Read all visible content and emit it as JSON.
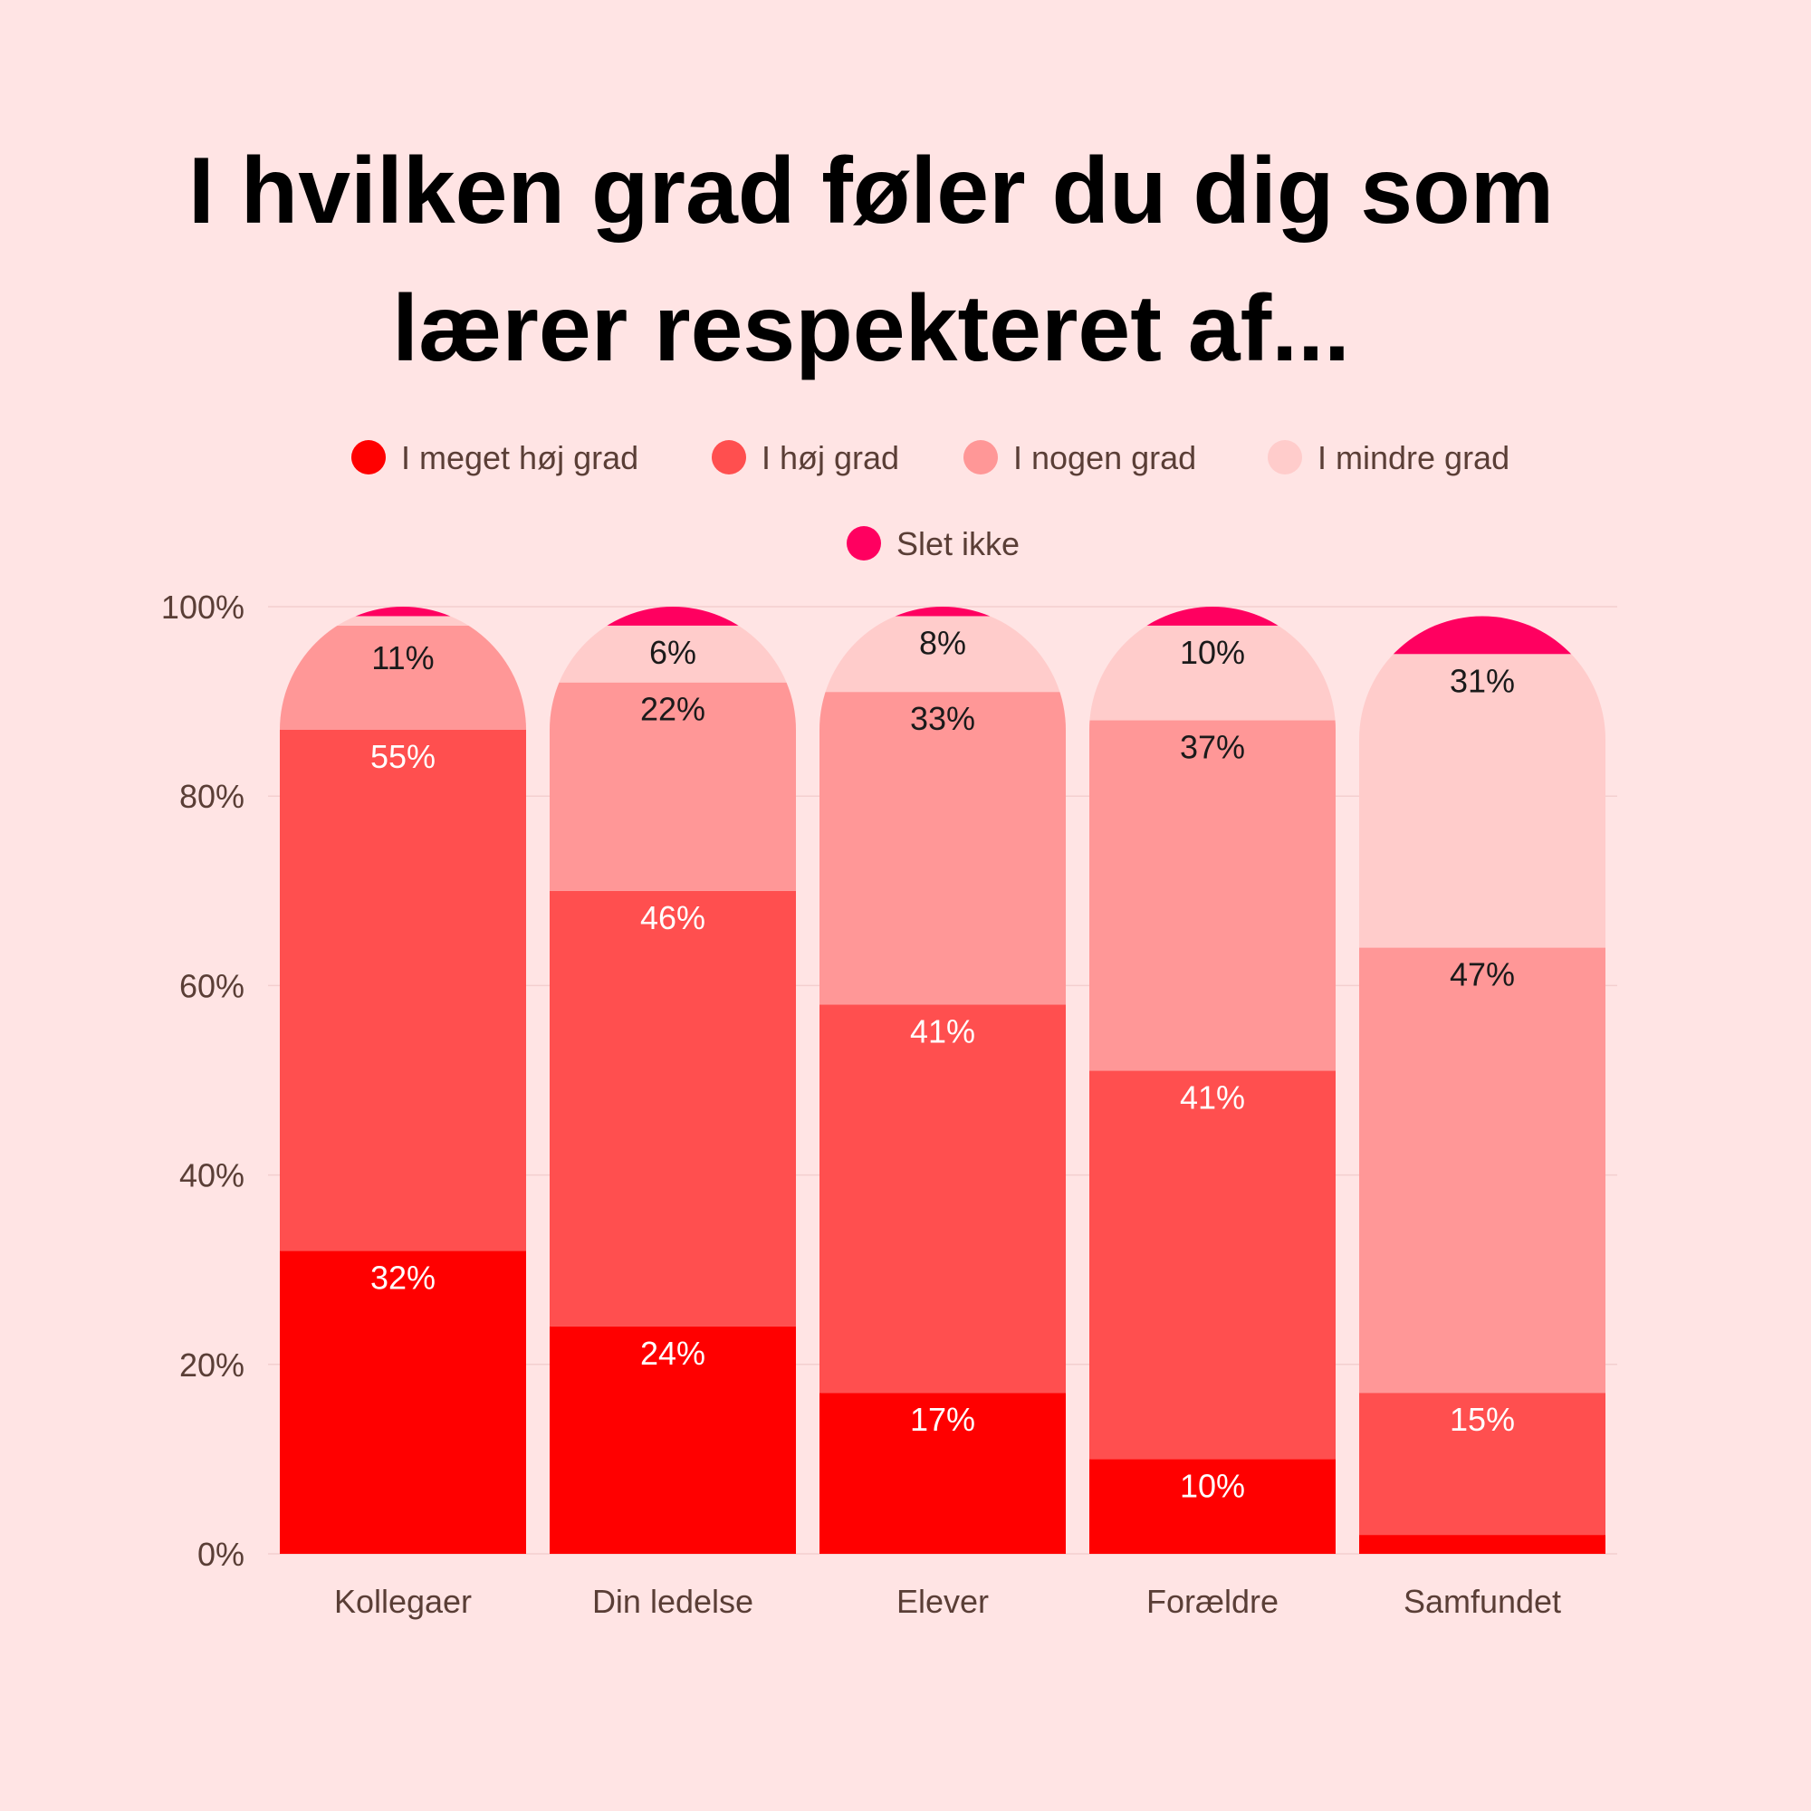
{
  "chart_data": {
    "type": "bar",
    "stacked": true,
    "title_lines": [
      "I hvilken grad føler du dig som",
      "lærer respekteret af..."
    ],
    "categories": [
      "Kollegaer",
      "Din ledelse",
      "Elever",
      "Forældre",
      "Samfundet"
    ],
    "series": [
      {
        "name": "I meget høj grad",
        "color": "#ff0000",
        "values": [
          32,
          24,
          17,
          10,
          2
        ],
        "labels": [
          "32%",
          "24%",
          "17%",
          "10%",
          ""
        ],
        "label_color": "#ffffff"
      },
      {
        "name": "I høj grad",
        "color": "#ff4f4f",
        "values": [
          55,
          46,
          41,
          41,
          15
        ],
        "labels": [
          "55%",
          "46%",
          "41%",
          "41%",
          "15%"
        ],
        "label_color": "#ffffff"
      },
      {
        "name": "I nogen grad",
        "color": "#ff9797",
        "values": [
          11,
          22,
          33,
          37,
          47
        ],
        "labels": [
          "11%",
          "22%",
          "33%",
          "37%",
          "47%"
        ],
        "label_color": "#1a1a1a"
      },
      {
        "name": "I mindre grad",
        "color": "#ffcccb",
        "values": [
          1,
          6,
          8,
          10,
          31
        ],
        "labels": [
          "",
          "6%",
          "8%",
          "10%",
          "31%"
        ],
        "label_color": "#1a1a1a"
      },
      {
        "name": "Slet ikke",
        "color": "#ff0060",
        "values": [
          1,
          2,
          1,
          2,
          4
        ],
        "labels": [
          "",
          "",
          "",
          "",
          ""
        ],
        "label_color": "#1a1a1a"
      }
    ],
    "y_ticks": [
      "0%",
      "20%",
      "40%",
      "60%",
      "80%",
      "100%"
    ],
    "ylim": [
      0,
      100
    ],
    "grid": true,
    "legend_position": "top"
  }
}
